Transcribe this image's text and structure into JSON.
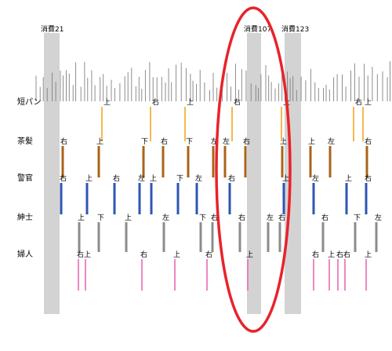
{
  "band_labels": [
    "消費21",
    "消費107",
    "消費123"
  ],
  "row_labels": [
    "短パン",
    "茶髪",
    "警官",
    "紳士",
    "婦人"
  ],
  "colors": {
    "band": "#d3d3d3",
    "ticks": "#808080",
    "highlight": "#e8232a",
    "rows": [
      "#f5a623",
      "#a8641a",
      "#2e55b4",
      "#8c8c8c",
      "#e86bb4"
    ]
  },
  "row_markers": [
    {
      "row": "短パン",
      "labels": [
        "上",
        "右",
        "上",
        "右",
        "上",
        "右",
        "上"
      ]
    },
    {
      "row": "茶髪",
      "labels": [
        "右",
        "上",
        "下",
        "右",
        "下",
        "左",
        "左",
        "右",
        "上",
        "上",
        "左",
        "右"
      ]
    },
    {
      "row": "警官",
      "labels": [
        "右",
        "上",
        "右",
        "左",
        "上",
        "下",
        "左",
        "右",
        "上",
        "左",
        "上",
        "右"
      ]
    },
    {
      "row": "紳士",
      "labels": [
        "上",
        "下",
        "上",
        "左",
        "下",
        "右",
        "右",
        "左",
        "右",
        "右",
        "下",
        "左"
      ]
    },
    {
      "row": "婦人",
      "labels": [
        "右",
        "上",
        "右",
        "上",
        "右",
        "上",
        "右",
        "上",
        "右",
        "右",
        "上"
      ]
    }
  ]
}
